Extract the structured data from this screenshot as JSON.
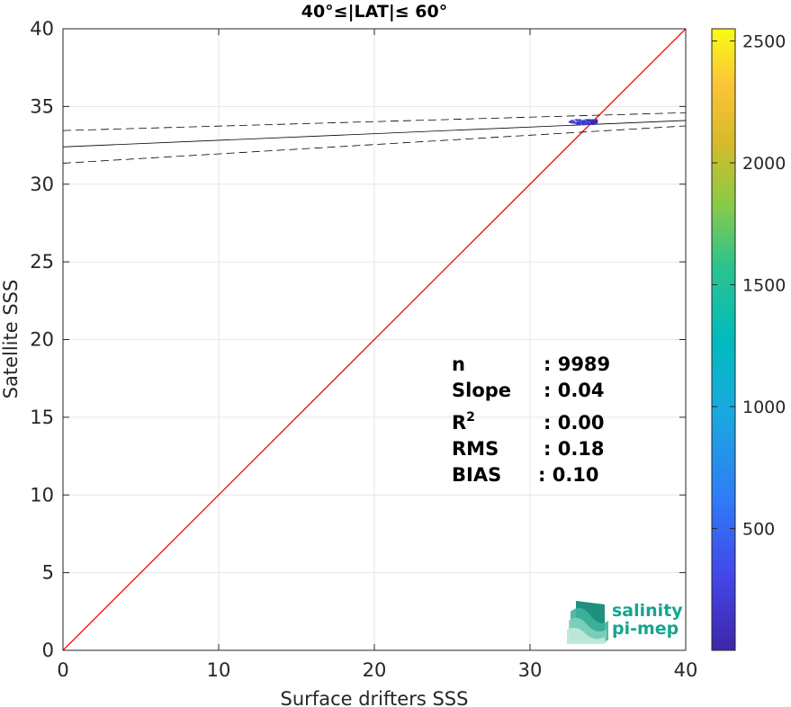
{
  "chart_data": {
    "type": "scatter",
    "title": "40°≤|LAT|≤ 60°",
    "xlabel": "Surface drifters SSS",
    "ylabel": "Satellite SSS",
    "xlim": [
      0,
      40
    ],
    "ylim": [
      0,
      40
    ],
    "xticks": [
      0,
      10,
      20,
      30,
      40
    ],
    "yticks": [
      0,
      5,
      10,
      15,
      20,
      25,
      30,
      35,
      40
    ],
    "grid": true,
    "identity_line": {
      "from": [
        0,
        0
      ],
      "to": [
        40,
        40
      ],
      "color": "#ff0000"
    },
    "regression": {
      "fit": [
        [
          0,
          32.4
        ],
        [
          40,
          34.1
        ]
      ],
      "upper_bound": [
        [
          0,
          33.45
        ],
        [
          40,
          34.6
        ]
      ],
      "lower_bound": [
        [
          0,
          31.35
        ],
        [
          40,
          33.75
        ]
      ]
    },
    "scatter_cluster": {
      "x_range": [
        32.2,
        34.3
      ],
      "y_range": [
        33.7,
        34.3
      ],
      "color_scale": "density"
    },
    "colorbar": {
      "min": 0,
      "max": 2550,
      "ticks": [
        500,
        1000,
        1500,
        2000,
        2500
      ],
      "colormap": "parula"
    },
    "stats": [
      {
        "label": "n",
        "value": ": 9989"
      },
      {
        "label": "Slope",
        "value": ": 0.04"
      },
      {
        "label": "R",
        "sup": "2",
        "value": ": 0.00"
      },
      {
        "label": "RMS",
        "value": ": 0.18"
      },
      {
        "label": "BIAS",
        "value": ": 0.10"
      }
    ]
  },
  "logo": {
    "line1": "salinity",
    "line2": "pi-mep",
    "text_color": "#17a58f"
  }
}
